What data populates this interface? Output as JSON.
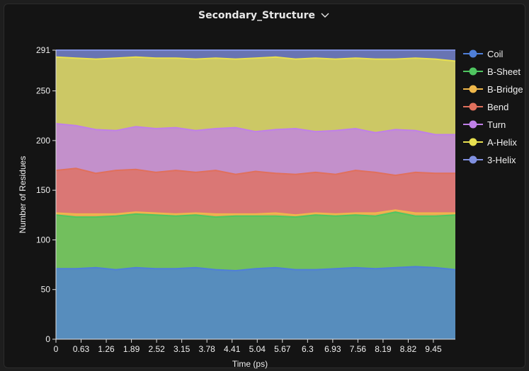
{
  "title": "Secondary_Structure",
  "colors": {
    "Coil": "#4f7fd8",
    "B-Sheet": "#4fc560",
    "B-Bridge": "#f0b84a",
    "Bend": "#e0705c",
    "Turn": "#c080e8",
    "A-Helix": "#e8e050",
    "3-Helix": "#8090e0"
  },
  "chart_data": {
    "type": "area",
    "stacked": true,
    "xlabel": "Time (ps)",
    "ylabel": "Number of Residues",
    "xlim": [
      0,
      10
    ],
    "ylim": [
      0,
      291
    ],
    "xticks": [
      "0",
      "0.63",
      "1.26",
      "1.89",
      "2.52",
      "3.15",
      "3.78",
      "4.41",
      "5.04",
      "5.67",
      "6.3",
      "6.93",
      "7.56",
      "8.19",
      "8.82",
      "9.45"
    ],
    "xtick_values": [
      0,
      0.63,
      1.26,
      1.89,
      2.52,
      3.15,
      3.78,
      4.41,
      5.04,
      5.67,
      6.3,
      6.93,
      7.56,
      8.19,
      8.82,
      9.45
    ],
    "yticks": [
      0,
      50,
      100,
      150,
      200,
      250,
      291
    ],
    "legend_position": "right",
    "x": [
      0,
      0.5,
      1,
      1.5,
      2,
      2.5,
      3,
      3.5,
      4,
      4.5,
      5,
      5.5,
      6,
      6.5,
      7,
      7.5,
      8,
      8.5,
      9,
      9.5,
      10
    ],
    "series": [
      {
        "name": "Coil",
        "cumulative": [
          71,
          71,
          72,
          70,
          72,
          71,
          71,
          72,
          70,
          69,
          71,
          72,
          70,
          70,
          71,
          72,
          71,
          72,
          73,
          72,
          70
        ]
      },
      {
        "name": "B-Sheet",
        "cumulative": [
          125,
          123,
          123,
          124,
          126,
          125,
          124,
          125,
          123,
          124,
          124,
          124,
          123,
          125,
          124,
          125,
          124,
          128,
          124,
          124,
          125
        ]
      },
      {
        "name": "B-Bridge",
        "cumulative": [
          127,
          126,
          126,
          126,
          128,
          127,
          126,
          127,
          126,
          126,
          126,
          127,
          125,
          127,
          126,
          127,
          127,
          130,
          127,
          127,
          127
        ]
      },
      {
        "name": "Bend",
        "cumulative": [
          170,
          172,
          167,
          170,
          171,
          168,
          170,
          168,
          170,
          166,
          169,
          167,
          166,
          168,
          166,
          170,
          168,
          165,
          168,
          167,
          167
        ]
      },
      {
        "name": "Turn",
        "cumulative": [
          217,
          215,
          211,
          210,
          214,
          212,
          213,
          210,
          212,
          213,
          209,
          211,
          212,
          209,
          210,
          212,
          208,
          211,
          210,
          206,
          206
        ]
      },
      {
        "name": "A-Helix",
        "cumulative": [
          284,
          283,
          282,
          283,
          284,
          283,
          283,
          282,
          283,
          282,
          283,
          284,
          282,
          283,
          282,
          283,
          282,
          282,
          283,
          282,
          280
        ]
      },
      {
        "name": "3-Helix",
        "cumulative": [
          291,
          291,
          291,
          291,
          291,
          291,
          291,
          291,
          291,
          291,
          291,
          291,
          291,
          291,
          291,
          291,
          291,
          291,
          291,
          291,
          291
        ]
      }
    ]
  }
}
